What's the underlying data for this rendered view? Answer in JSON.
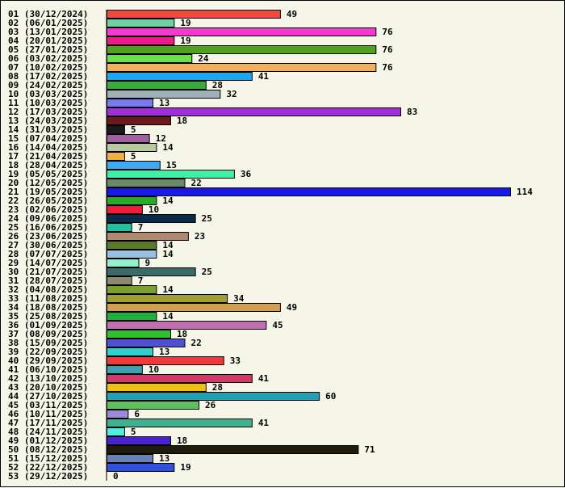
{
  "chart_data": {
    "type": "bar",
    "orientation": "horizontal",
    "title": "",
    "xlabel": "",
    "ylabel": "",
    "grid": false,
    "legend": "none",
    "xlim": [
      0,
      114
    ],
    "categories": [
      "01 (30/12/2024)",
      "02 (06/01/2025)",
      "03 (13/01/2025)",
      "04 (20/01/2025)",
      "05 (27/01/2025)",
      "06 (03/02/2025)",
      "07 (10/02/2025)",
      "08 (17/02/2025)",
      "09 (24/02/2025)",
      "10 (03/03/2025)",
      "11 (10/03/2025)",
      "12 (17/03/2025)",
      "13 (24/03/2025)",
      "14 (31/03/2025)",
      "15 (07/04/2025)",
      "16 (14/04/2025)",
      "17 (21/04/2025)",
      "18 (28/04/2025)",
      "19 (05/05/2025)",
      "20 (12/05/2025)",
      "21 (19/05/2025)",
      "22 (26/05/2025)",
      "23 (02/06/2025)",
      "24 (09/06/2025)",
      "25 (16/06/2025)",
      "26 (23/06/2025)",
      "27 (30/06/2025)",
      "28 (07/07/2025)",
      "29 (14/07/2025)",
      "30 (21/07/2025)",
      "31 (28/07/2025)",
      "32 (04/08/2025)",
      "33 (11/08/2025)",
      "34 (18/08/2025)",
      "35 (25/08/2025)",
      "36 (01/09/2025)",
      "37 (08/09/2025)",
      "38 (15/09/2025)",
      "39 (22/09/2025)",
      "40 (29/09/2025)",
      "41 (06/10/2025)",
      "42 (13/10/2025)",
      "43 (20/10/2025)",
      "44 (27/10/2025)",
      "45 (03/11/2025)",
      "46 (10/11/2025)",
      "47 (17/11/2025)",
      "48 (24/11/2025)",
      "49 (01/12/2025)",
      "50 (08/12/2025)",
      "51 (15/12/2025)",
      "52 (22/12/2025)",
      "53 (29/12/2025)"
    ],
    "values": [
      49,
      19,
      76,
      19,
      76,
      24,
      76,
      41,
      28,
      32,
      13,
      83,
      18,
      5,
      12,
      14,
      5,
      15,
      36,
      22,
      114,
      14,
      10,
      25,
      7,
      23,
      14,
      14,
      9,
      25,
      7,
      14,
      34,
      49,
      14,
      45,
      18,
      22,
      13,
      33,
      10,
      41,
      28,
      60,
      26,
      6,
      41,
      5,
      18,
      71,
      13,
      19,
      0
    ],
    "colors": [
      "#f04a3a",
      "#6fd0a0",
      "#f03ad0",
      "#f01a8a",
      "#52a020",
      "#6ae04a",
      "#f0b060",
      "#1aa8f0",
      "#3aaa3a",
      "#a0b0b8",
      "#7a7af0",
      "#a030d8",
      "#6a1a1a",
      "#1a1a1a",
      "#a060a0",
      "#b8c8a0",
      "#f0b040",
      "#40a8f0",
      "#40f0a8",
      "#6a8a6a",
      "#1a1ae8",
      "#2aaa2a",
      "#f01a3a",
      "#0a2a4a",
      "#20c0a0",
      "#b08870",
      "#5a7a2a",
      "#98c0e0",
      "#90f0d0",
      "#3a6a6a",
      "#8a8a70",
      "#7aa030",
      "#a0a030",
      "#d0a050",
      "#20b040",
      "#c070b0",
      "#30c030",
      "#5050d0",
      "#30d0d0",
      "#f03a3a",
      "#40a0b0",
      "#d03a6a",
      "#f0c010",
      "#20a0b0",
      "#60c060",
      "#9a8ad8",
      "#40b090",
      "#50f0e0",
      "#4a20d0",
      "#201a0a",
      "#6a80b8",
      "#3050e0",
      "#a0a0a0"
    ]
  }
}
